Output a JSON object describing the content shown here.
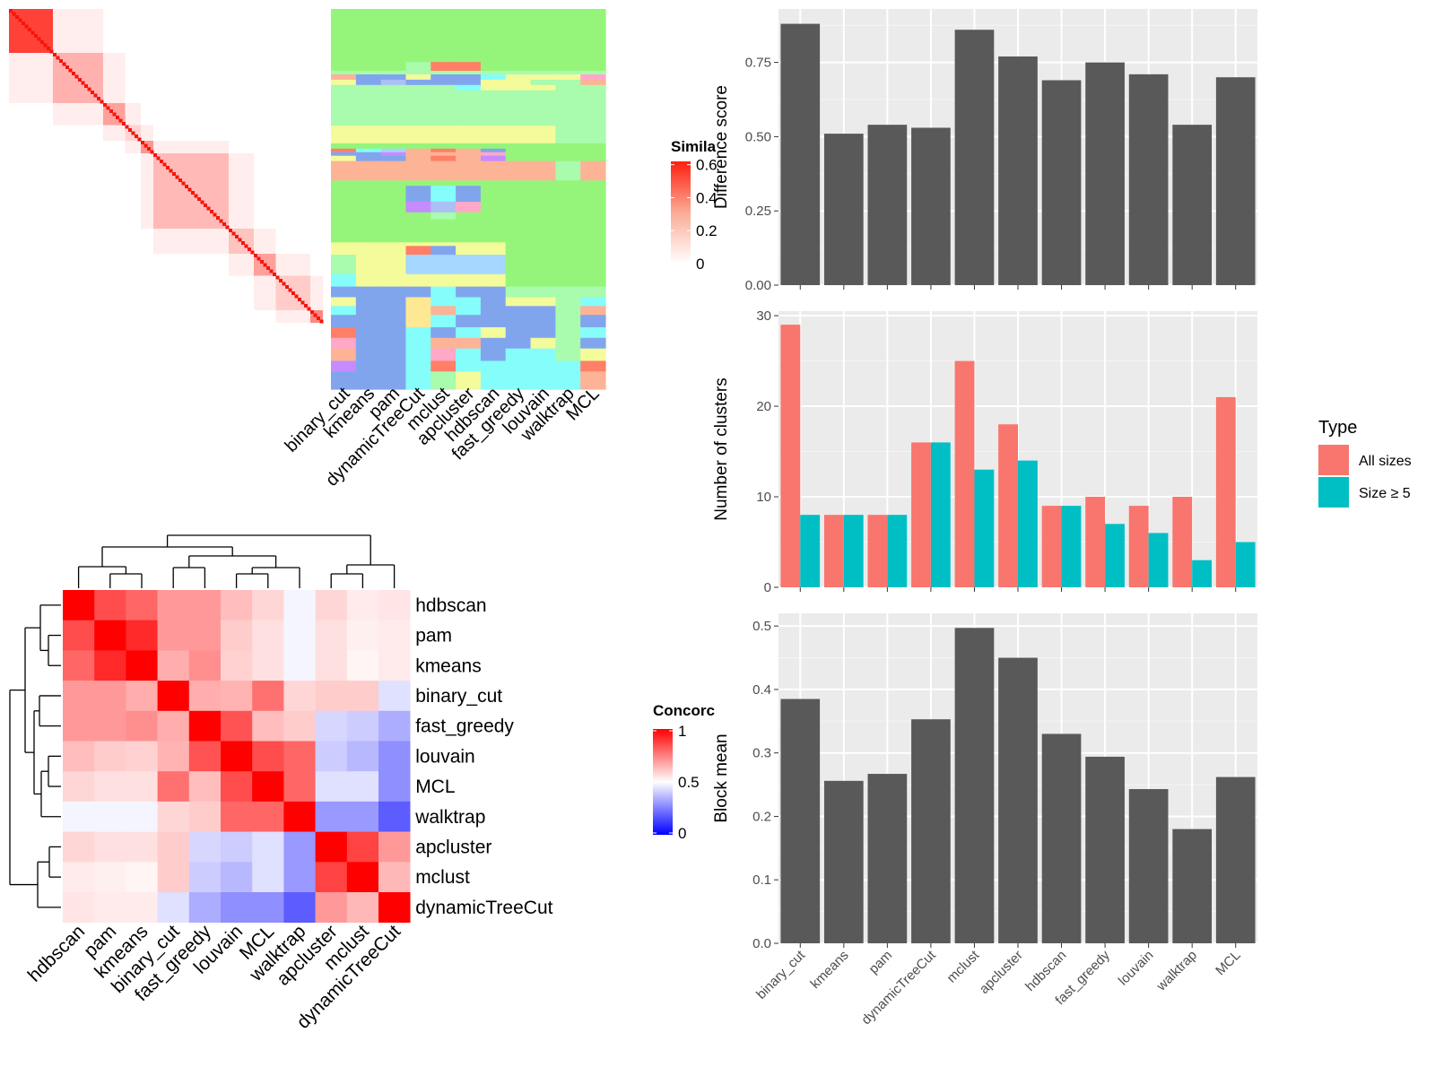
{
  "chart_data": [
    {
      "type": "heatmap",
      "panel": "similarity-heatmap",
      "legend_title": "Similarity",
      "legend_title_visible": "Simila",
      "legend_ticks": [
        "0.6",
        "0.4",
        "0.2",
        "0"
      ],
      "scale": [
        0,
        0.6
      ],
      "methods": [
        "binary_cut",
        "kmeans",
        "pam",
        "dynamicTreeCut",
        "mclust",
        "apcluster",
        "hdbscan",
        "fast_greedy",
        "louvain",
        "walktrap",
        "MCL"
      ],
      "class_colors": [
        "#95f57a",
        "#a9fbad",
        "#f4fb9b",
        "#fdb396",
        "#81a5ed",
        "#85fdfb",
        "#c58bff",
        "#ffa8c8",
        "#ff7f67",
        "#a5d6ff",
        "#fee893",
        "#abc0f4"
      ],
      "rows": [
        {
          "h": 60,
          "cols": [
            0,
            0,
            0,
            0,
            0,
            0,
            0,
            0,
            0,
            0,
            0
          ]
        },
        {
          "h": 10,
          "cols": [
            0,
            0,
            0,
            1,
            8,
            8,
            0,
            0,
            0,
            0,
            0
          ]
        },
        {
          "h": 4,
          "cols": [
            1,
            1,
            1,
            1,
            1,
            1,
            1,
            1,
            1,
            1,
            1
          ]
        },
        {
          "h": 6,
          "cols": [
            3,
            4,
            4,
            2,
            4,
            4,
            5,
            2,
            2,
            2,
            7
          ]
        },
        {
          "h": 6,
          "cols": [
            2,
            4,
            11,
            4,
            4,
            4,
            2,
            2,
            1,
            1,
            3
          ]
        },
        {
          "h": 6,
          "cols": [
            1,
            1,
            1,
            1,
            1,
            5,
            2,
            2,
            2,
            1,
            1
          ]
        },
        {
          "h": 22,
          "cols": [
            1,
            1,
            1,
            1,
            1,
            1,
            1,
            1,
            1,
            1,
            1
          ]
        },
        {
          "h": 18,
          "cols": [
            1,
            1,
            1,
            1,
            1,
            1,
            1,
            1,
            1,
            1,
            1
          ]
        },
        {
          "h": 20,
          "cols": [
            2,
            2,
            2,
            2,
            2,
            2,
            2,
            2,
            2,
            1,
            1
          ]
        },
        {
          "h": 6,
          "cols": [
            0,
            0,
            0,
            0,
            0,
            0,
            0,
            0,
            0,
            0,
            0
          ]
        },
        {
          "h": 4,
          "cols": [
            8,
            5,
            9,
            3,
            8,
            3,
            4,
            0,
            0,
            0,
            0
          ]
        },
        {
          "h": 4,
          "cols": [
            4,
            4,
            6,
            3,
            3,
            3,
            7,
            0,
            0,
            0,
            0
          ]
        },
        {
          "h": 6,
          "cols": [
            2,
            4,
            4,
            3,
            8,
            3,
            6,
            0,
            0,
            0,
            0
          ]
        },
        {
          "h": 22,
          "cols": [
            3,
            3,
            3,
            3,
            3,
            3,
            3,
            3,
            3,
            1,
            3
          ]
        },
        {
          "h": 6,
          "cols": [
            0,
            0,
            0,
            0,
            0,
            0,
            0,
            0,
            0,
            0,
            0
          ]
        },
        {
          "h": 18,
          "cols": [
            0,
            0,
            0,
            4,
            5,
            4,
            0,
            0,
            0,
            0,
            0
          ]
        },
        {
          "h": 12,
          "cols": [
            0,
            0,
            0,
            6,
            11,
            7,
            0,
            0,
            0,
            0,
            0
          ]
        },
        {
          "h": 8,
          "cols": [
            0,
            0,
            0,
            0,
            1,
            0,
            0,
            0,
            0,
            0,
            0
          ]
        },
        {
          "h": 26,
          "cols": [
            0,
            0,
            0,
            0,
            0,
            0,
            0,
            0,
            0,
            0,
            0
          ]
        },
        {
          "h": 4,
          "cols": [
            2,
            2,
            2,
            2,
            2,
            2,
            2,
            0,
            0,
            0,
            0
          ]
        },
        {
          "h": 10,
          "cols": [
            2,
            2,
            2,
            8,
            4,
            2,
            2,
            0,
            0,
            0,
            0
          ]
        },
        {
          "h": 22,
          "cols": [
            1,
            2,
            2,
            9,
            9,
            9,
            9,
            0,
            0,
            0,
            0
          ]
        },
        {
          "h": 14,
          "cols": [
            5,
            2,
            2,
            2,
            2,
            2,
            2,
            0,
            0,
            0,
            0
          ]
        },
        {
          "h": 12,
          "cols": [
            4,
            4,
            4,
            4,
            5,
            4,
            4,
            1,
            1,
            1,
            1
          ]
        },
        {
          "h": 10,
          "cols": [
            2,
            4,
            4,
            10,
            5,
            5,
            4,
            2,
            2,
            1,
            5
          ]
        },
        {
          "h": 10,
          "cols": [
            5,
            4,
            4,
            10,
            3,
            5,
            4,
            4,
            4,
            1,
            3
          ]
        },
        {
          "h": 14,
          "cols": [
            4,
            4,
            4,
            10,
            5,
            4,
            4,
            4,
            4,
            1,
            4
          ]
        },
        {
          "h": 12,
          "cols": [
            8,
            4,
            4,
            5,
            4,
            5,
            2,
            4,
            4,
            1,
            5
          ]
        },
        {
          "h": 12,
          "cols": [
            7,
            4,
            4,
            5,
            3,
            3,
            4,
            4,
            2,
            1,
            4
          ]
        },
        {
          "h": 14,
          "cols": [
            3,
            4,
            4,
            5,
            7,
            5,
            4,
            5,
            5,
            1,
            2
          ]
        },
        {
          "h": 12,
          "cols": [
            6,
            4,
            4,
            5,
            8,
            5,
            5,
            5,
            5,
            5,
            8
          ]
        },
        {
          "h": 20,
          "cols": [
            4,
            4,
            4,
            5,
            1,
            2,
            5,
            5,
            5,
            5,
            3
          ]
        }
      ]
    },
    {
      "type": "heatmap",
      "panel": "concordance-heatmap",
      "legend_title": "Concordance",
      "legend_title_visible": "Concorc",
      "legend_ticks": [
        "1",
        "0.5",
        "0"
      ],
      "scale": [
        0,
        1
      ],
      "rows": [
        "hdbscan",
        "pam",
        "kmeans",
        "binary_cut",
        "fast_greedy",
        "louvain",
        "MCL",
        "walktrap",
        "apcluster",
        "mclust",
        "dynamicTreeCut"
      ],
      "columns": [
        "hdbscan",
        "pam",
        "kmeans",
        "binary_cut",
        "fast_greedy",
        "louvain",
        "MCL",
        "walktrap",
        "apcluster",
        "mclust",
        "dynamicTreeCut"
      ],
      "values": [
        [
          1.0,
          0.85,
          0.8,
          0.7,
          0.7,
          0.63,
          0.58,
          0.48,
          0.58,
          0.54,
          0.55
        ],
        [
          0.85,
          1.0,
          0.92,
          0.7,
          0.7,
          0.6,
          0.56,
          0.48,
          0.56,
          0.53,
          0.54
        ],
        [
          0.8,
          0.92,
          1.0,
          0.66,
          0.72,
          0.59,
          0.56,
          0.48,
          0.56,
          0.52,
          0.54
        ],
        [
          0.7,
          0.7,
          0.66,
          1.0,
          0.66,
          0.65,
          0.78,
          0.58,
          0.6,
          0.6,
          0.44
        ],
        [
          0.7,
          0.7,
          0.72,
          0.66,
          1.0,
          0.84,
          0.63,
          0.6,
          0.42,
          0.4,
          0.34
        ],
        [
          0.63,
          0.6,
          0.59,
          0.65,
          0.84,
          1.0,
          0.85,
          0.8,
          0.4,
          0.36,
          0.28
        ],
        [
          0.58,
          0.56,
          0.56,
          0.78,
          0.63,
          0.85,
          1.0,
          0.8,
          0.44,
          0.44,
          0.28
        ],
        [
          0.48,
          0.48,
          0.48,
          0.58,
          0.6,
          0.8,
          0.8,
          1.0,
          0.3,
          0.3,
          0.18
        ],
        [
          0.58,
          0.56,
          0.56,
          0.6,
          0.42,
          0.4,
          0.44,
          0.3,
          1.0,
          0.87,
          0.7
        ],
        [
          0.54,
          0.53,
          0.52,
          0.6,
          0.4,
          0.36,
          0.44,
          0.3,
          0.87,
          1.0,
          0.64
        ],
        [
          0.55,
          0.54,
          0.54,
          0.44,
          0.34,
          0.28,
          0.28,
          0.18,
          0.7,
          0.64,
          1.0
        ]
      ]
    },
    {
      "type": "bar",
      "panel": "difference-score",
      "categories": [
        "binary_cut",
        "kmeans",
        "pam",
        "dynamicTreeCut",
        "mclust",
        "apcluster",
        "hdbscan",
        "fast_greedy",
        "louvain",
        "walktrap",
        "MCL"
      ],
      "values": [
        0.88,
        0.51,
        0.54,
        0.53,
        0.86,
        0.77,
        0.69,
        0.75,
        0.71,
        0.54,
        0.7
      ],
      "ylabel": "Difference score",
      "ylim": [
        0,
        0.93
      ],
      "yticks": [
        0,
        0.25,
        0.5,
        0.75
      ],
      "ytick_labels": [
        "0.00",
        "0.25",
        "0.50",
        "0.75"
      ],
      "bar_color": "#595959"
    },
    {
      "type": "bar",
      "panel": "number-of-clusters",
      "categories": [
        "binary_cut",
        "kmeans",
        "pam",
        "dynamicTreeCut",
        "mclust",
        "apcluster",
        "hdbscan",
        "fast_greedy",
        "louvain",
        "walktrap",
        "MCL"
      ],
      "series": [
        {
          "name": "All sizes",
          "color": "#f8766d",
          "values": [
            29,
            8,
            8,
            16,
            25,
            18,
            9,
            10,
            9,
            10,
            21
          ]
        },
        {
          "name": "Size ≥ 5",
          "color": "#00bfc4",
          "values": [
            8,
            8,
            8,
            16,
            13,
            14,
            9,
            7,
            6,
            3,
            5
          ]
        }
      ],
      "ylabel": "Number of clusters",
      "ylim": [
        0,
        30.5
      ],
      "yticks": [
        0,
        10,
        20,
        30
      ],
      "ytick_labels": [
        "0",
        "10",
        "20",
        "30"
      ],
      "legend_title": "Type",
      "legend_position": "right"
    },
    {
      "type": "bar",
      "panel": "block-mean",
      "categories": [
        "binary_cut",
        "kmeans",
        "pam",
        "dynamicTreeCut",
        "mclust",
        "apcluster",
        "hdbscan",
        "fast_greedy",
        "louvain",
        "walktrap",
        "MCL"
      ],
      "values": [
        0.385,
        0.256,
        0.267,
        0.353,
        0.497,
        0.45,
        0.33,
        0.294,
        0.243,
        0.18,
        0.262
      ],
      "ylabel": "Block mean",
      "ylim": [
        0,
        0.52
      ],
      "yticks": [
        0,
        0.1,
        0.2,
        0.3,
        0.4,
        0.5
      ],
      "ytick_labels": [
        "0.0",
        "0.1",
        "0.2",
        "0.3",
        "0.4",
        "0.5"
      ],
      "bar_color": "#595959"
    }
  ]
}
